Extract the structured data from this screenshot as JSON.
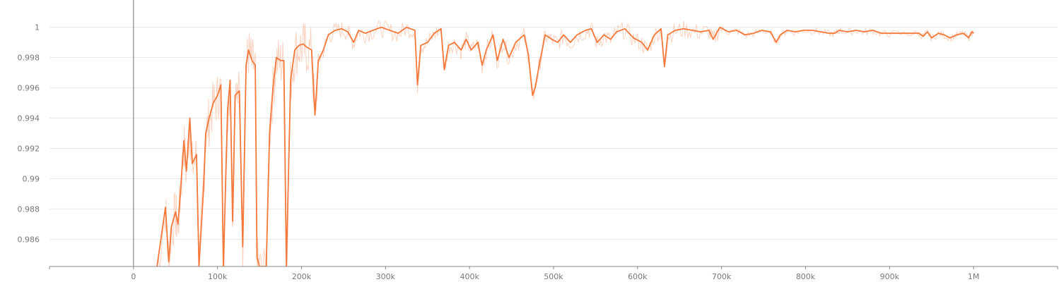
{
  "chart_data": {
    "type": "line",
    "title": "",
    "xlabel": "",
    "ylabel": "",
    "xlim": [
      -100000,
      1100000
    ],
    "ylim": [
      0.9842,
      1.0018
    ],
    "grid": true,
    "colors": {
      "smoothed": "#f4793b",
      "raw": "#f9c4ab",
      "grid": "#e6e6e6",
      "axis": "#888888",
      "label": "#777777"
    },
    "x_ticks": [
      {
        "value": 0,
        "label": "0"
      },
      {
        "value": 100000,
        "label": "100k"
      },
      {
        "value": 200000,
        "label": "200k"
      },
      {
        "value": 300000,
        "label": "300k"
      },
      {
        "value": 400000,
        "label": "400k"
      },
      {
        "value": 500000,
        "label": "500k"
      },
      {
        "value": 600000,
        "label": "600k"
      },
      {
        "value": 700000,
        "label": "700k"
      },
      {
        "value": 800000,
        "label": "800k"
      },
      {
        "value": 900000,
        "label": "900k"
      },
      {
        "value": 1000000,
        "label": "1M"
      }
    ],
    "y_ticks": [
      {
        "value": 0.986,
        "label": "0.986"
      },
      {
        "value": 0.988,
        "label": "0.988"
      },
      {
        "value": 0.99,
        "label": "0.99"
      },
      {
        "value": 0.992,
        "label": "0.992"
      },
      {
        "value": 0.994,
        "label": "0.994"
      },
      {
        "value": 0.996,
        "label": "0.996"
      },
      {
        "value": 0.998,
        "label": "0.998"
      },
      {
        "value": 1.0,
        "label": "1"
      },
      {
        "value": 1.002,
        "label": "1"
      }
    ],
    "series": [
      {
        "values": [
          [
            28000,
            0.9842
          ],
          [
            38000,
            0.9881
          ],
          [
            42000,
            0.9845
          ],
          [
            45000,
            0.9868
          ],
          [
            50000,
            0.9878
          ],
          [
            53000,
            0.987
          ],
          [
            56000,
            0.9892
          ],
          [
            60000,
            0.9925
          ],
          [
            63000,
            0.9905
          ],
          [
            67000,
            0.994
          ],
          [
            70000,
            0.991
          ],
          [
            75000,
            0.9916
          ],
          [
            78000,
            0.9842
          ],
          [
            83000,
            0.989
          ],
          [
            86000,
            0.993
          ],
          [
            90000,
            0.994
          ],
          [
            95000,
            0.995
          ],
          [
            100000,
            0.9955
          ],
          [
            104000,
            0.9962
          ],
          [
            107000,
            0.9842
          ],
          [
            112000,
            0.9945
          ],
          [
            115000,
            0.9965
          ],
          [
            118000,
            0.9872
          ],
          [
            121000,
            0.9955
          ],
          [
            126000,
            0.9958
          ],
          [
            130000,
            0.9855
          ],
          [
            134000,
            0.9975
          ],
          [
            137000,
            0.9985
          ],
          [
            141000,
            0.9978
          ],
          [
            145000,
            0.9975
          ],
          [
            147000,
            0.9848
          ],
          [
            150000,
            0.9842
          ],
          [
            158000,
            0.9842
          ],
          [
            162000,
            0.993
          ],
          [
            166000,
            0.996
          ],
          [
            170000,
            0.998
          ],
          [
            175000,
            0.9978
          ],
          [
            179000,
            0.9978
          ],
          [
            182000,
            0.9842
          ],
          [
            187000,
            0.9965
          ],
          [
            192000,
            0.9985
          ],
          [
            197000,
            0.9988
          ],
          [
            202000,
            0.9989
          ],
          [
            206000,
            0.9987
          ],
          [
            212000,
            0.9985
          ],
          [
            216000,
            0.9942
          ],
          [
            220000,
            0.9978
          ],
          [
            226000,
            0.9985
          ],
          [
            232000,
            0.9995
          ],
          [
            240000,
            0.9998
          ],
          [
            248000,
            0.9999
          ],
          [
            255000,
            0.9997
          ],
          [
            262000,
            0.999
          ],
          [
            268000,
            0.9998
          ],
          [
            276000,
            0.9996
          ],
          [
            285000,
            0.9998
          ],
          [
            295000,
            1.0
          ],
          [
            305000,
            0.9998
          ],
          [
            315000,
            0.9996
          ],
          [
            325000,
            1.0
          ],
          [
            335000,
            0.9998
          ],
          [
            338000,
            0.9962
          ],
          [
            342000,
            0.9988
          ],
          [
            350000,
            0.999
          ],
          [
            358000,
            0.9996
          ],
          [
            366000,
            0.9999
          ],
          [
            370000,
            0.9972
          ],
          [
            375000,
            0.9988
          ],
          [
            382000,
            0.999
          ],
          [
            390000,
            0.9985
          ],
          [
            396000,
            0.9992
          ],
          [
            402000,
            0.9985
          ],
          [
            410000,
            0.999
          ],
          [
            415000,
            0.9975
          ],
          [
            420000,
            0.9985
          ],
          [
            428000,
            0.9995
          ],
          [
            433000,
            0.9978
          ],
          [
            440000,
            0.9992
          ],
          [
            447000,
            0.998
          ],
          [
            455000,
            0.999
          ],
          [
            465000,
            0.9995
          ],
          [
            470000,
            0.9982
          ],
          [
            475000,
            0.9955
          ],
          [
            478000,
            0.996
          ],
          [
            483000,
            0.9975
          ],
          [
            490000,
            0.9995
          ],
          [
            498000,
            0.9992
          ],
          [
            505000,
            0.999
          ],
          [
            512000,
            0.9995
          ],
          [
            520000,
            0.999
          ],
          [
            528000,
            0.9995
          ],
          [
            538000,
            0.9998
          ],
          [
            545000,
            0.9999
          ],
          [
            552000,
            0.999
          ],
          [
            560000,
            0.9995
          ],
          [
            568000,
            0.9992
          ],
          [
            575000,
            0.9997
          ],
          [
            585000,
            0.9999
          ],
          [
            595000,
            0.9993
          ],
          [
            605000,
            0.999
          ],
          [
            612000,
            0.9985
          ],
          [
            620000,
            0.9995
          ],
          [
            628000,
            0.9999
          ],
          [
            632000,
            0.9974
          ],
          [
            636000,
            0.9995
          ],
          [
            645000,
            0.9998
          ],
          [
            655000,
            0.9999
          ],
          [
            665000,
            0.9998
          ],
          [
            675000,
            0.9997
          ],
          [
            685000,
            0.9998
          ],
          [
            690000,
            0.9992
          ],
          [
            698000,
            1.0
          ],
          [
            708000,
            0.9997
          ],
          [
            718000,
            0.9998
          ],
          [
            728000,
            0.9995
          ],
          [
            738000,
            0.9996
          ],
          [
            748000,
            0.9998
          ],
          [
            758000,
            0.9997
          ],
          [
            765000,
            0.999
          ],
          [
            770000,
            0.9995
          ],
          [
            778000,
            0.9998
          ],
          [
            788000,
            0.9997
          ],
          [
            798000,
            0.9998
          ],
          [
            808000,
            0.9998
          ],
          [
            818000,
            0.9997
          ],
          [
            828000,
            0.9996
          ],
          [
            835000,
            0.9996
          ],
          [
            840000,
            0.9998
          ],
          [
            850000,
            0.9997
          ],
          [
            860000,
            0.9998
          ],
          [
            870000,
            0.9997
          ],
          [
            880000,
            0.9998
          ],
          [
            890000,
            0.9996
          ],
          [
            900000,
            0.9996
          ],
          [
            920000,
            0.9996
          ],
          [
            935000,
            0.9996
          ],
          [
            940000,
            0.9994
          ],
          [
            945000,
            0.9997
          ],
          [
            950000,
            0.9993
          ],
          [
            958000,
            0.9996
          ],
          [
            965000,
            0.9995
          ],
          [
            972000,
            0.9993
          ],
          [
            980000,
            0.9995
          ],
          [
            988000,
            0.9996
          ],
          [
            994000,
            0.9993
          ],
          [
            998000,
            0.9997
          ],
          [
            1000000,
            0.9996
          ]
        ]
      }
    ]
  }
}
